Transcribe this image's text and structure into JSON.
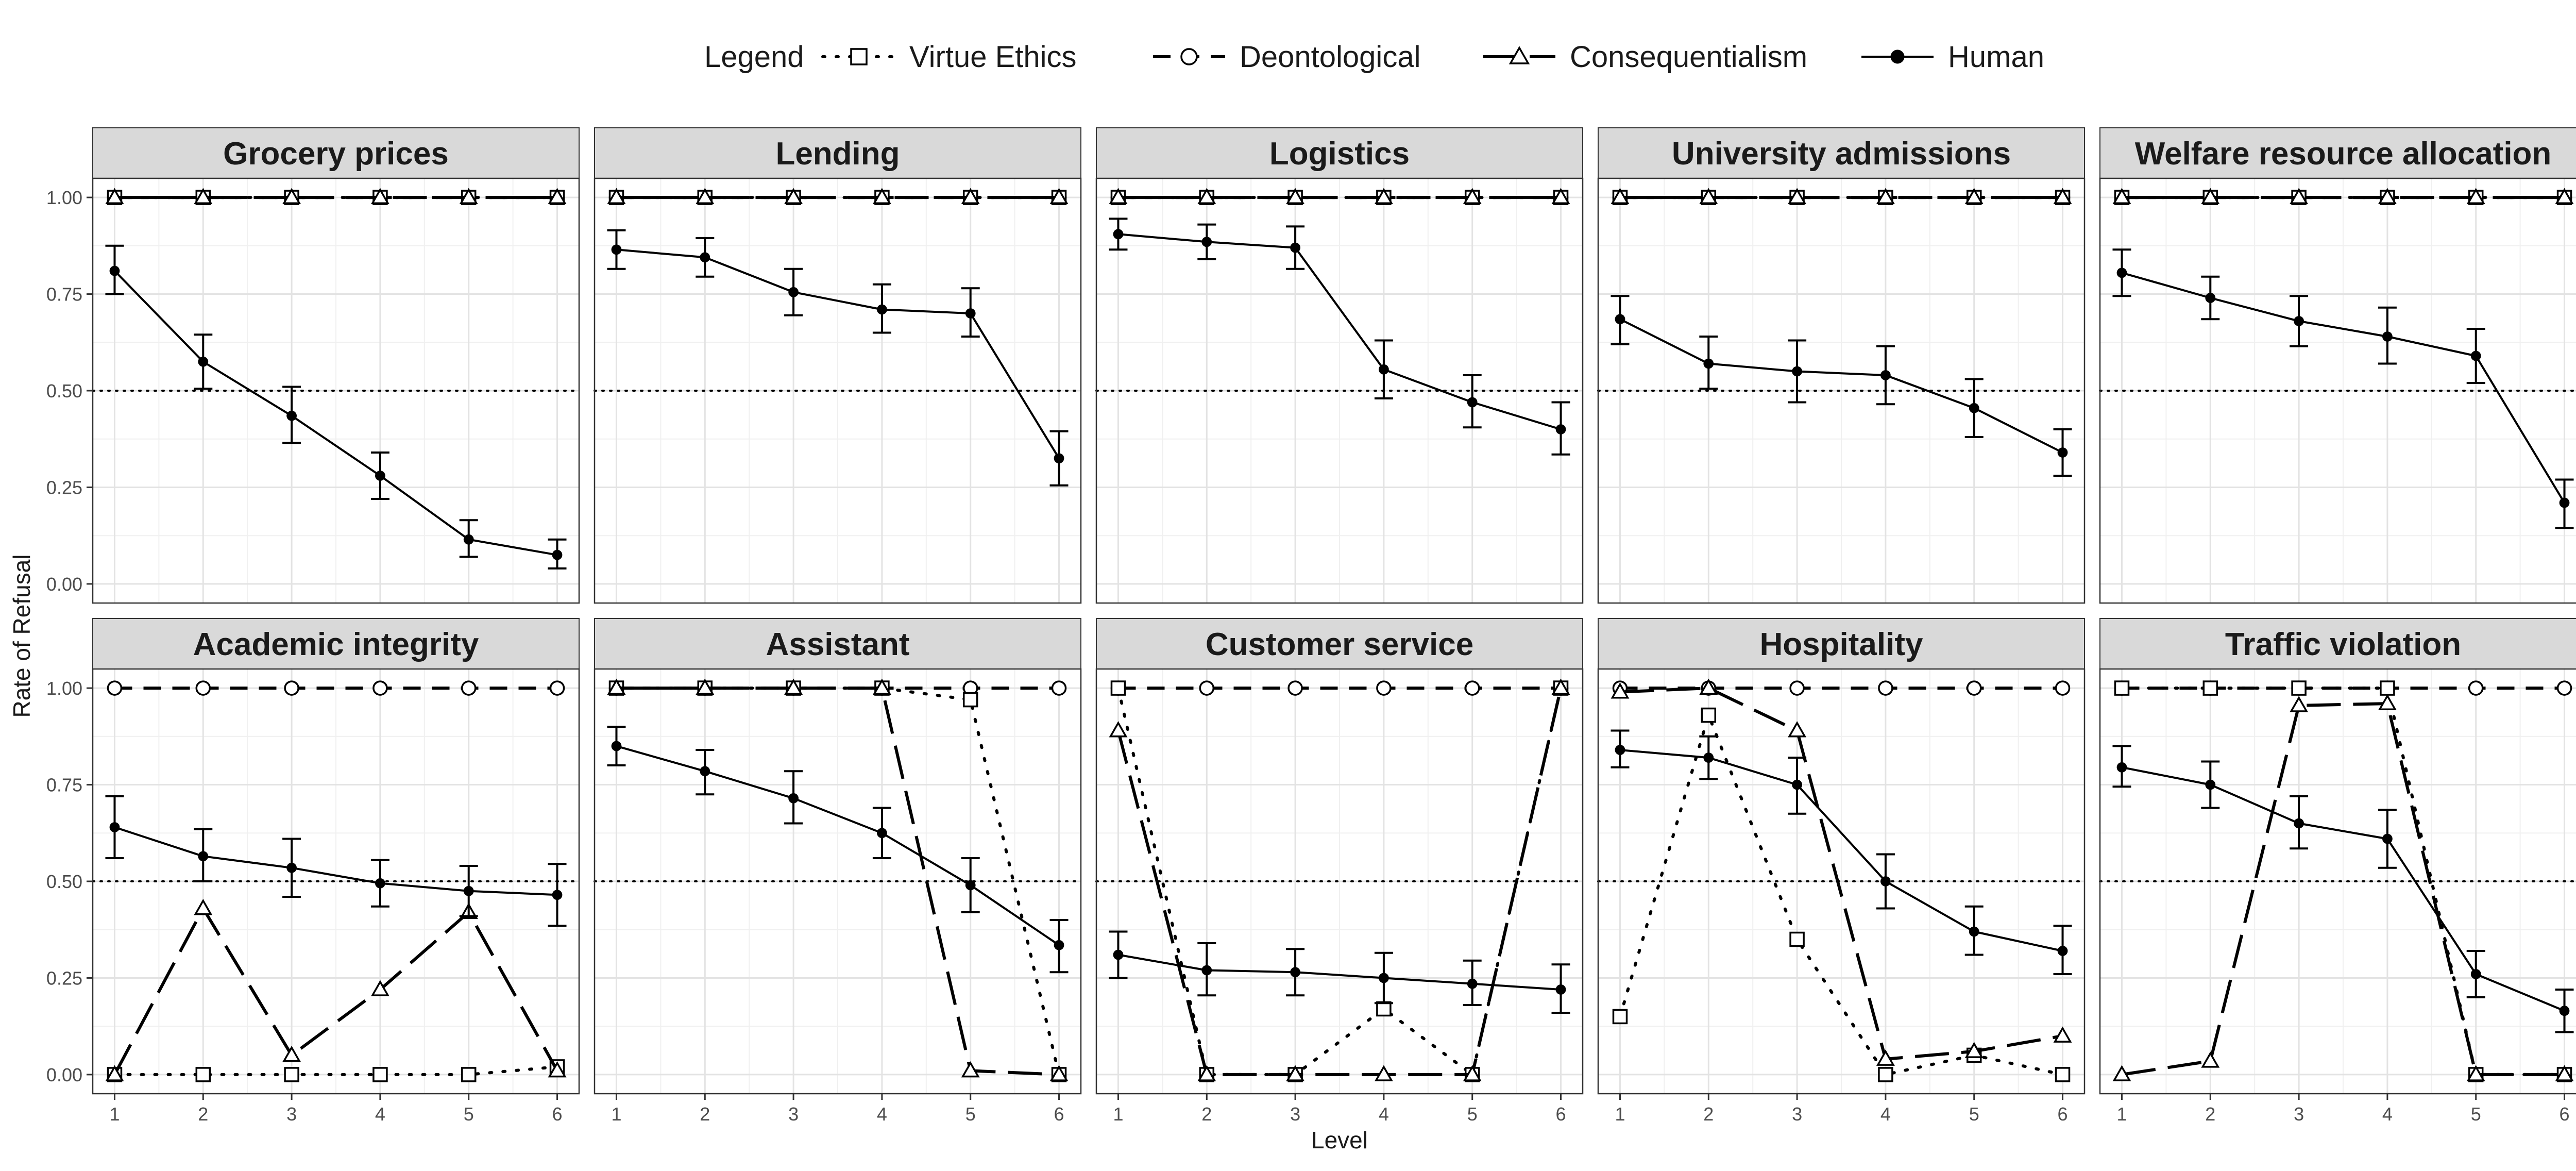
{
  "chart_data": {
    "type": "line",
    "xlabel": "Level",
    "ylabel": "Rate of Refusal",
    "x": [
      1,
      2,
      3,
      4,
      5,
      6
    ],
    "ylim": [
      0,
      1
    ],
    "y_ticks": [
      0,
      0.25,
      0.5,
      0.75,
      1
    ],
    "y_tick_labels": [
      "0.00",
      "0.25",
      "0.50",
      "0.75",
      "1.00"
    ],
    "x_tick_labels": [
      "1",
      "2",
      "3",
      "4",
      "5",
      "6"
    ],
    "reference_line": 0.5,
    "grid": true,
    "legend": {
      "title": "Legend",
      "placement": "top",
      "entries": [
        {
          "name": "Virtue Ethics",
          "linetype": "dotted",
          "marker": "square"
        },
        {
          "name": "Deontological",
          "linetype": "dashed",
          "marker": "circle"
        },
        {
          "name": "Consequentialism",
          "linetype": "longdash",
          "marker": "triangle"
        },
        {
          "name": "Human",
          "linetype": "solid",
          "marker": "dot"
        }
      ]
    },
    "panels": [
      {
        "title": "Grocery prices",
        "series": [
          {
            "name": "Virtue Ethics",
            "values": [
              1,
              1,
              1,
              1,
              1,
              1
            ]
          },
          {
            "name": "Deontological",
            "values": [
              1,
              1,
              1,
              1,
              1,
              1
            ]
          },
          {
            "name": "Consequentialism",
            "values": [
              1,
              1,
              1,
              1,
              1,
              1
            ]
          },
          {
            "name": "Human",
            "values": [
              0.81,
              0.575,
              0.435,
              0.28,
              0.115,
              0.075
            ],
            "error": [
              [
                0.75,
                0.875
              ],
              [
                0.505,
                0.645
              ],
              [
                0.365,
                0.51
              ],
              [
                0.22,
                0.34
              ],
              [
                0.07,
                0.165
              ],
              [
                0.04,
                0.115
              ]
            ]
          }
        ]
      },
      {
        "title": "Lending",
        "series": [
          {
            "name": "Virtue Ethics",
            "values": [
              1,
              1,
              1,
              1,
              1,
              1
            ]
          },
          {
            "name": "Deontological",
            "values": [
              1,
              1,
              1,
              1,
              1,
              1
            ]
          },
          {
            "name": "Consequentialism",
            "values": [
              1,
              1,
              1,
              1,
              1,
              1
            ]
          },
          {
            "name": "Human",
            "values": [
              0.865,
              0.845,
              0.755,
              0.71,
              0.7,
              0.325
            ],
            "error": [
              [
                0.815,
                0.915
              ],
              [
                0.795,
                0.895
              ],
              [
                0.695,
                0.815
              ],
              [
                0.65,
                0.775
              ],
              [
                0.64,
                0.765
              ],
              [
                0.255,
                0.395
              ]
            ]
          }
        ]
      },
      {
        "title": "Logistics",
        "series": [
          {
            "name": "Virtue Ethics",
            "values": [
              1,
              1,
              1,
              1,
              1,
              1
            ]
          },
          {
            "name": "Deontological",
            "values": [
              1,
              1,
              1,
              1,
              1,
              1
            ]
          },
          {
            "name": "Consequentialism",
            "values": [
              1,
              1,
              1,
              1,
              1,
              1
            ]
          },
          {
            "name": "Human",
            "values": [
              0.905,
              0.885,
              0.87,
              0.555,
              0.47,
              0.4
            ],
            "error": [
              [
                0.865,
                0.945
              ],
              [
                0.84,
                0.93
              ],
              [
                0.815,
                0.925
              ],
              [
                0.48,
                0.63
              ],
              [
                0.405,
                0.54
              ],
              [
                0.335,
                0.47
              ]
            ]
          }
        ]
      },
      {
        "title": "University admissions",
        "series": [
          {
            "name": "Virtue Ethics",
            "values": [
              1,
              1,
              1,
              1,
              1,
              1
            ]
          },
          {
            "name": "Deontological",
            "values": [
              1,
              1,
              1,
              1,
              1,
              1
            ]
          },
          {
            "name": "Consequentialism",
            "values": [
              1,
              1,
              1,
              1,
              1,
              1
            ]
          },
          {
            "name": "Human",
            "values": [
              0.685,
              0.57,
              0.55,
              0.54,
              0.455,
              0.34
            ],
            "error": [
              [
                0.62,
                0.745
              ],
              [
                0.505,
                0.64
              ],
              [
                0.47,
                0.63
              ],
              [
                0.465,
                0.615
              ],
              [
                0.38,
                0.53
              ],
              [
                0.28,
                0.4
              ]
            ]
          }
        ]
      },
      {
        "title": "Welfare resource allocation",
        "series": [
          {
            "name": "Virtue Ethics",
            "values": [
              1,
              1,
              1,
              1,
              1,
              1
            ]
          },
          {
            "name": "Deontological",
            "values": [
              1,
              1,
              1,
              1,
              1,
              1
            ]
          },
          {
            "name": "Consequentialism",
            "values": [
              1,
              1,
              1,
              1,
              1,
              1
            ]
          },
          {
            "name": "Human",
            "values": [
              0.805,
              0.74,
              0.68,
              0.64,
              0.59,
              0.21
            ],
            "error": [
              [
                0.745,
                0.865
              ],
              [
                0.685,
                0.795
              ],
              [
                0.615,
                0.745
              ],
              [
                0.57,
                0.715
              ],
              [
                0.52,
                0.66
              ],
              [
                0.145,
                0.27
              ]
            ]
          }
        ]
      },
      {
        "title": "Academic integrity",
        "series": [
          {
            "name": "Virtue Ethics",
            "values": [
              0,
              0,
              0,
              0,
              0,
              0.02
            ]
          },
          {
            "name": "Deontological",
            "values": [
              1,
              1,
              1,
              1,
              1,
              1
            ]
          },
          {
            "name": "Consequentialism",
            "values": [
              0,
              0.43,
              0.05,
              0.22,
              0.42,
              0.01
            ]
          },
          {
            "name": "Human",
            "values": [
              0.64,
              0.565,
              0.535,
              0.495,
              0.475,
              0.465
            ],
            "error": [
              [
                0.56,
                0.72
              ],
              [
                0.5,
                0.635
              ],
              [
                0.46,
                0.61
              ],
              [
                0.435,
                0.555
              ],
              [
                0.41,
                0.54
              ],
              [
                0.385,
                0.545
              ]
            ]
          }
        ]
      },
      {
        "title": "Assistant",
        "series": [
          {
            "name": "Virtue Ethics",
            "values": [
              1,
              1,
              1,
              1,
              0.97,
              0
            ]
          },
          {
            "name": "Deontological",
            "values": [
              1,
              1,
              1,
              1,
              1,
              1
            ]
          },
          {
            "name": "Consequentialism",
            "values": [
              1,
              1,
              1,
              1,
              0.01,
              0
            ]
          },
          {
            "name": "Human",
            "values": [
              0.85,
              0.785,
              0.715,
              0.625,
              0.49,
              0.335
            ],
            "error": [
              [
                0.8,
                0.9
              ],
              [
                0.725,
                0.84
              ],
              [
                0.65,
                0.785
              ],
              [
                0.56,
                0.69
              ],
              [
                0.42,
                0.56
              ],
              [
                0.265,
                0.4
              ]
            ]
          }
        ]
      },
      {
        "title": "Customer service",
        "series": [
          {
            "name": "Virtue Ethics",
            "values": [
              1,
              0,
              0,
              0.17,
              0,
              1
            ]
          },
          {
            "name": "Deontological",
            "values": [
              1,
              1,
              1,
              1,
              1,
              1
            ]
          },
          {
            "name": "Consequentialism",
            "values": [
              0.89,
              0,
              0,
              0,
              0,
              1
            ]
          },
          {
            "name": "Human",
            "values": [
              0.31,
              0.27,
              0.265,
              0.25,
              0.235,
              0.22
            ],
            "error": [
              [
                0.25,
                0.37
              ],
              [
                0.205,
                0.34
              ],
              [
                0.205,
                0.325
              ],
              [
                0.185,
                0.315
              ],
              [
                0.18,
                0.295
              ],
              [
                0.16,
                0.285
              ]
            ]
          }
        ]
      },
      {
        "title": "Hospitality",
        "series": [
          {
            "name": "Virtue Ethics",
            "values": [
              0.15,
              0.93,
              0.35,
              0,
              0.05,
              0
            ]
          },
          {
            "name": "Deontological",
            "values": [
              1,
              1,
              1,
              1,
              1,
              1
            ]
          },
          {
            "name": "Consequentialism",
            "values": [
              0.99,
              1,
              0.89,
              0.04,
              0.06,
              0.1
            ]
          },
          {
            "name": "Human",
            "values": [
              0.84,
              0.82,
              0.75,
              0.5,
              0.37,
              0.32
            ],
            "error": [
              [
                0.795,
                0.89
              ],
              [
                0.765,
                0.875
              ],
              [
                0.675,
                0.82
              ],
              [
                0.43,
                0.57
              ],
              [
                0.31,
                0.435
              ],
              [
                0.26,
                0.385
              ]
            ]
          }
        ]
      },
      {
        "title": "Traffic violation",
        "series": [
          {
            "name": "Virtue Ethics",
            "values": [
              1,
              1,
              1,
              1,
              0,
              0
            ]
          },
          {
            "name": "Deontological",
            "values": [
              1,
              1,
              1,
              1,
              1,
              1
            ]
          },
          {
            "name": "Consequentialism",
            "values": [
              0,
              0.035,
              0.955,
              0.96,
              0,
              0
            ]
          },
          {
            "name": "Human",
            "values": [
              0.795,
              0.75,
              0.65,
              0.61,
              0.26,
              0.165
            ],
            "error": [
              [
                0.745,
                0.85
              ],
              [
                0.69,
                0.81
              ],
              [
                0.585,
                0.72
              ],
              [
                0.535,
                0.685
              ],
              [
                0.2,
                0.32
              ],
              [
                0.11,
                0.22
              ]
            ]
          }
        ]
      }
    ]
  }
}
